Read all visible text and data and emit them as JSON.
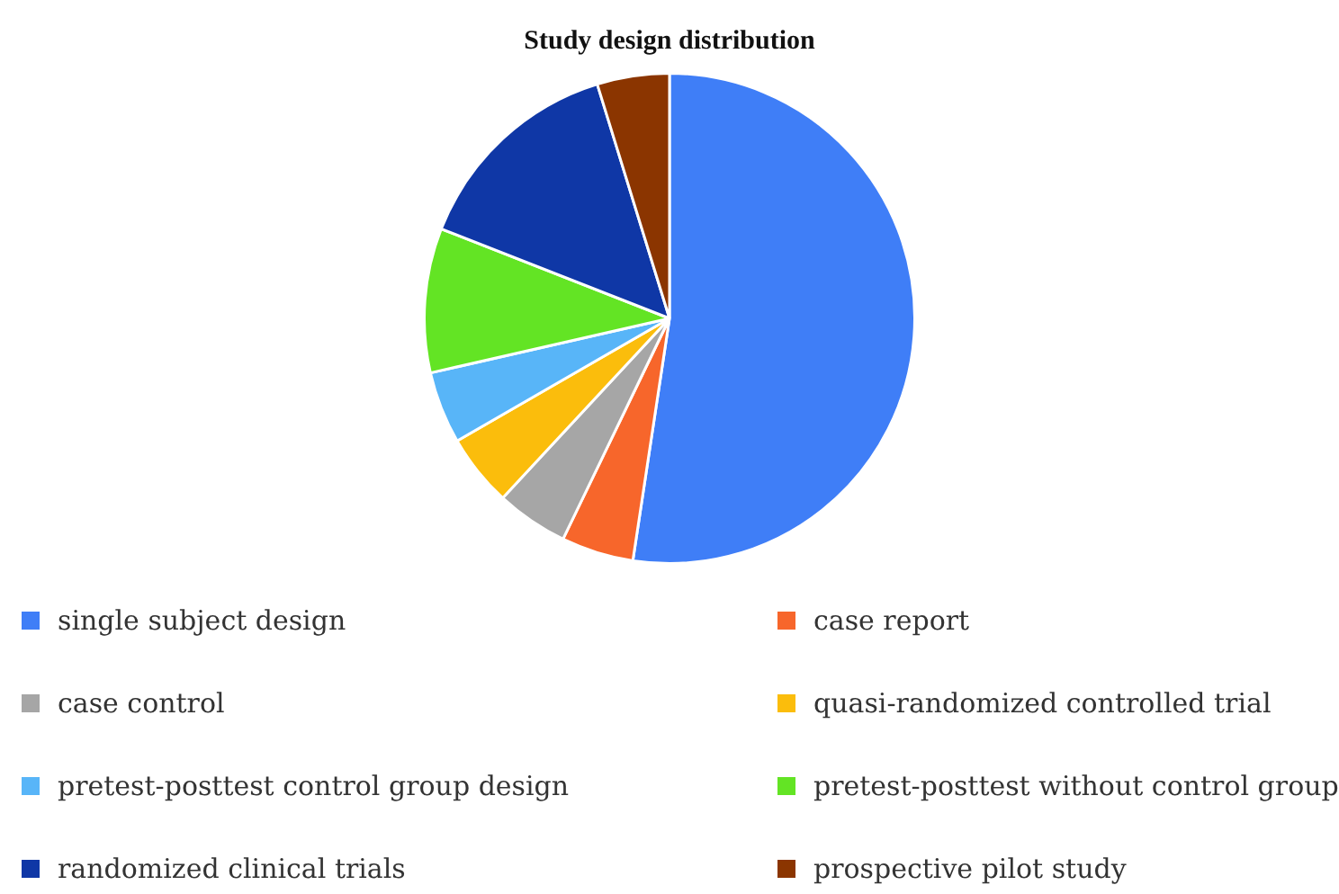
{
  "chart_data": {
    "type": "pie",
    "title": "Study design distribution",
    "categories": [
      "single subject design",
      "case report",
      "case control",
      "quasi-randomized controlled trial",
      "pretest-posttest control group design",
      "pretest-posttest without control group",
      "randomized clinical trials",
      "prospective pilot study"
    ],
    "values": [
      52.39,
      4.76,
      4.76,
      4.76,
      4.76,
      9.52,
      14.29,
      4.76
    ],
    "colors": [
      "#3f7ef7",
      "#f7662b",
      "#a6a6a6",
      "#fbbd0c",
      "#58b5f8",
      "#63e424",
      "#0f37a6",
      "#8b3500"
    ],
    "legend": "bottom"
  }
}
